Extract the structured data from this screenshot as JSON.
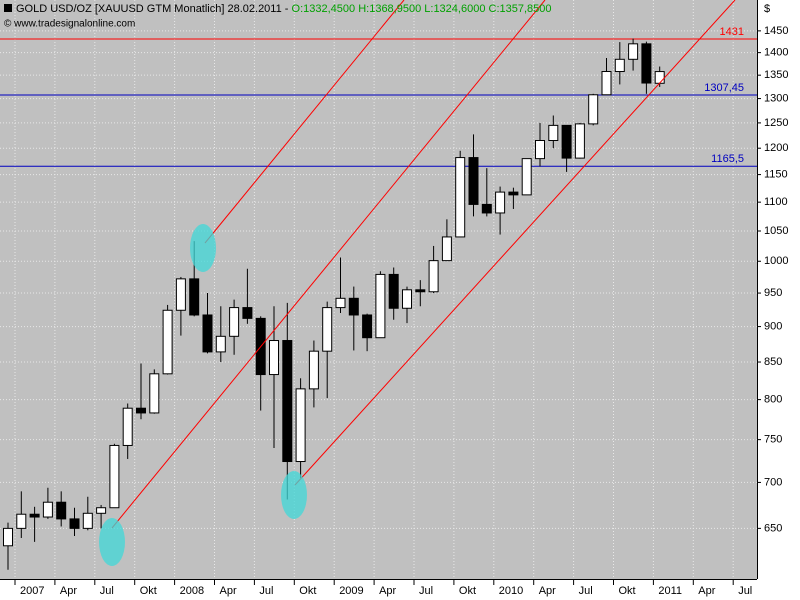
{
  "chart_data": {
    "type": "candlestick",
    "title": "GOLD USD/OZ [XAUUSD GTM  Monatlich] 28.02.2011 -",
    "ohlc_labels": [
      "O:1332,4500",
      "H:1368,9500",
      "L:1324,6000",
      "C:1357,8500"
    ],
    "ohlc_color": "#00a000",
    "subtitle": "© www.tradesignalonline.com",
    "y_unit": "$",
    "log_scale": true,
    "grid": true,
    "background": "#c0c0c0",
    "up_color": "#ffffff",
    "down_color": "#000000",
    "x": [
      "2007-01",
      "2007-02",
      "2007-03",
      "2007-04",
      "2007-05",
      "2007-06",
      "2007-07",
      "2007-08",
      "2007-09",
      "2007-10",
      "2007-11",
      "2007-12",
      "2008-01",
      "2008-02",
      "2008-03",
      "2008-04",
      "2008-05",
      "2008-06",
      "2008-07",
      "2008-08",
      "2008-09",
      "2008-10",
      "2008-11",
      "2008-12",
      "2009-01",
      "2009-02",
      "2009-03",
      "2009-04",
      "2009-05",
      "2009-06",
      "2009-07",
      "2009-08",
      "2009-09",
      "2009-10",
      "2009-11",
      "2009-12",
      "2010-01",
      "2010-02",
      "2010-03",
      "2010-04",
      "2010-05",
      "2010-06",
      "2010-07",
      "2010-08",
      "2010-09",
      "2010-10",
      "2010-11",
      "2010-12",
      "2011-01",
      "2011-02"
    ],
    "open": [
      632,
      650,
      665,
      662,
      678,
      660,
      650,
      666,
      672,
      743,
      789,
      783,
      834,
      924,
      972,
      917,
      864,
      886,
      928,
      912,
      833,
      880,
      724,
      814,
      865,
      928,
      942,
      917,
      884,
      979,
      927,
      955,
      952,
      1001,
      1040,
      1182,
      1096,
      1081,
      1118,
      1113,
      1180,
      1215,
      1245,
      1181,
      1248,
      1308,
      1358,
      1385,
      1420,
      1332.45
    ],
    "high": [
      656,
      690,
      673,
      694,
      690,
      672,
      684,
      675,
      745,
      795,
      848,
      840,
      932,
      975,
      1033,
      950,
      930,
      940,
      988,
      915,
      930,
      935,
      828,
      880,
      937,
      1006,
      960,
      919,
      984,
      990,
      960,
      970,
      1025,
      1070,
      1195,
      1227,
      1162,
      1128,
      1126,
      1180,
      1250,
      1265,
      1245,
      1250,
      1310,
      1388,
      1424,
      1432,
      1425,
      1368.95
    ],
    "low": [
      608,
      640,
      636,
      660,
      652,
      642,
      648,
      650,
      672,
      727,
      775,
      782,
      833,
      887,
      915,
      862,
      850,
      860,
      904,
      786,
      740,
      681,
      705,
      790,
      802,
      920,
      866,
      865,
      884,
      910,
      905,
      930,
      950,
      1001,
      1040,
      1075,
      1075,
      1044,
      1088,
      1113,
      1165,
      1200,
      1155,
      1180,
      1245,
      1308,
      1330,
      1360,
      1310,
      1324.6
    ],
    "close": [
      650,
      665,
      662,
      678,
      660,
      650,
      666,
      672,
      743,
      789,
      783,
      834,
      924,
      972,
      917,
      864,
      886,
      928,
      912,
      833,
      880,
      724,
      814,
      865,
      928,
      942,
      917,
      884,
      979,
      927,
      955,
      952,
      1001,
      1040,
      1182,
      1096,
      1081,
      1118,
      1113,
      1180,
      1215,
      1245,
      1181,
      1248,
      1308,
      1358,
      1385,
      1420,
      1333,
      1357.85
    ],
    "xlim": [
      "2006-12",
      "2011-09"
    ],
    "xticks": [
      {
        "value": "2007-01",
        "label": "2007"
      },
      {
        "value": "2007-04",
        "label": "Apr"
      },
      {
        "value": "2007-07",
        "label": "Jul"
      },
      {
        "value": "2007-10",
        "label": "Okt"
      },
      {
        "value": "2008-01",
        "label": "2008"
      },
      {
        "value": "2008-04",
        "label": "Apr"
      },
      {
        "value": "2008-07",
        "label": "Jul"
      },
      {
        "value": "2008-10",
        "label": "Okt"
      },
      {
        "value": "2009-01",
        "label": "2009"
      },
      {
        "value": "2009-04",
        "label": "Apr"
      },
      {
        "value": "2009-07",
        "label": "Jul"
      },
      {
        "value": "2009-10",
        "label": "Okt"
      },
      {
        "value": "2010-01",
        "label": "2010"
      },
      {
        "value": "2010-04",
        "label": "Apr"
      },
      {
        "value": "2010-07",
        "label": "Jul"
      },
      {
        "value": "2010-10",
        "label": "Okt"
      },
      {
        "value": "2011-01",
        "label": "2011"
      },
      {
        "value": "2011-04",
        "label": "Apr"
      },
      {
        "value": "2011-07",
        "label": "Jul"
      }
    ],
    "ylim": [
      600,
      1524
    ],
    "yticks": [
      650,
      700,
      750,
      800,
      850,
      900,
      950,
      1000,
      1050,
      1100,
      1150,
      1200,
      1250,
      1300,
      1350,
      1400,
      1450
    ],
    "hlines": [
      {
        "value": 1431,
        "label": "1431",
        "color": "#ff0000"
      },
      {
        "value": 1307.45,
        "label": "1307,45",
        "color": "#0000c0"
      },
      {
        "value": 1165.5,
        "label": "1165,5",
        "color": "#0000c0"
      }
    ]
  }
}
